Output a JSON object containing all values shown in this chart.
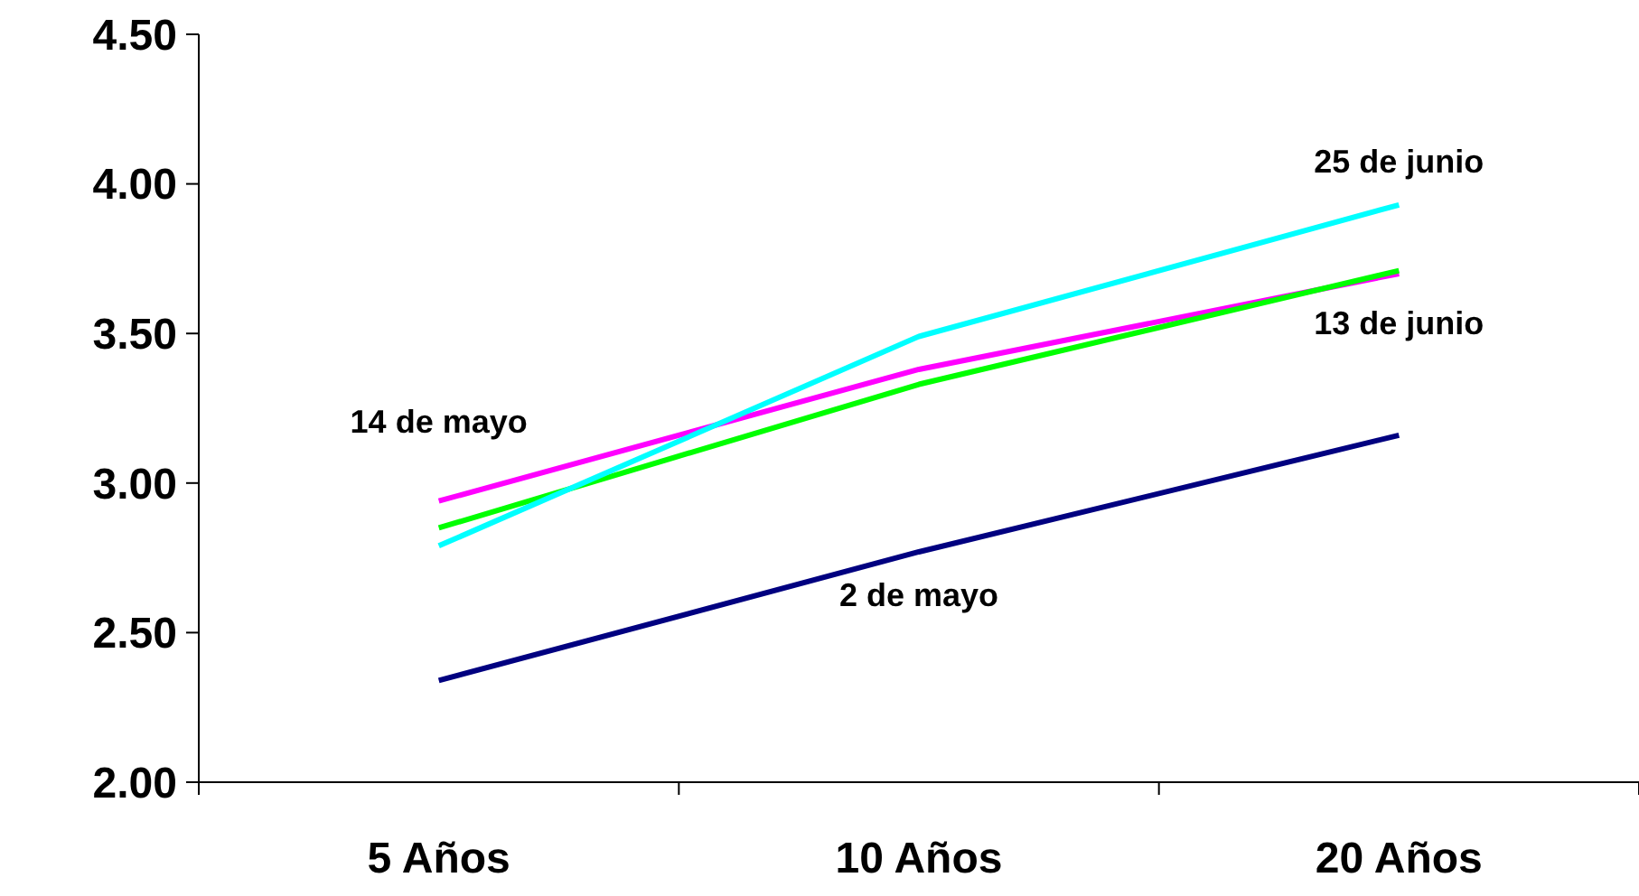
{
  "chart_data": {
    "type": "line",
    "categories": [
      "5 Años",
      "10 Años",
      "20 Años"
    ],
    "series": [
      {
        "name": "2 de mayo",
        "color": "#000080",
        "values": [
          2.34,
          2.77,
          3.16
        ]
      },
      {
        "name": "14 de mayo",
        "color": "#ff00ff",
        "values": [
          2.94,
          3.38,
          3.7
        ]
      },
      {
        "name": "13 de junio",
        "color": "#00ff00",
        "values": [
          2.85,
          3.33,
          3.71
        ]
      },
      {
        "name": "25 de junio",
        "color": "#00ffff",
        "values": [
          2.79,
          3.49,
          3.93
        ]
      }
    ],
    "ylim": [
      2,
      4.5
    ],
    "yticks": [
      {
        "value": 2,
        "label": "2.00"
      },
      {
        "value": 2.5,
        "label": "2.50"
      },
      {
        "value": 3,
        "label": "3.00"
      },
      {
        "value": 3.5,
        "label": "3.50"
      },
      {
        "value": 4,
        "label": "4.00"
      },
      {
        "value": 4.5,
        "label": "4.50"
      }
    ],
    "grid": false,
    "marker": "none",
    "line_style": "solid"
  }
}
